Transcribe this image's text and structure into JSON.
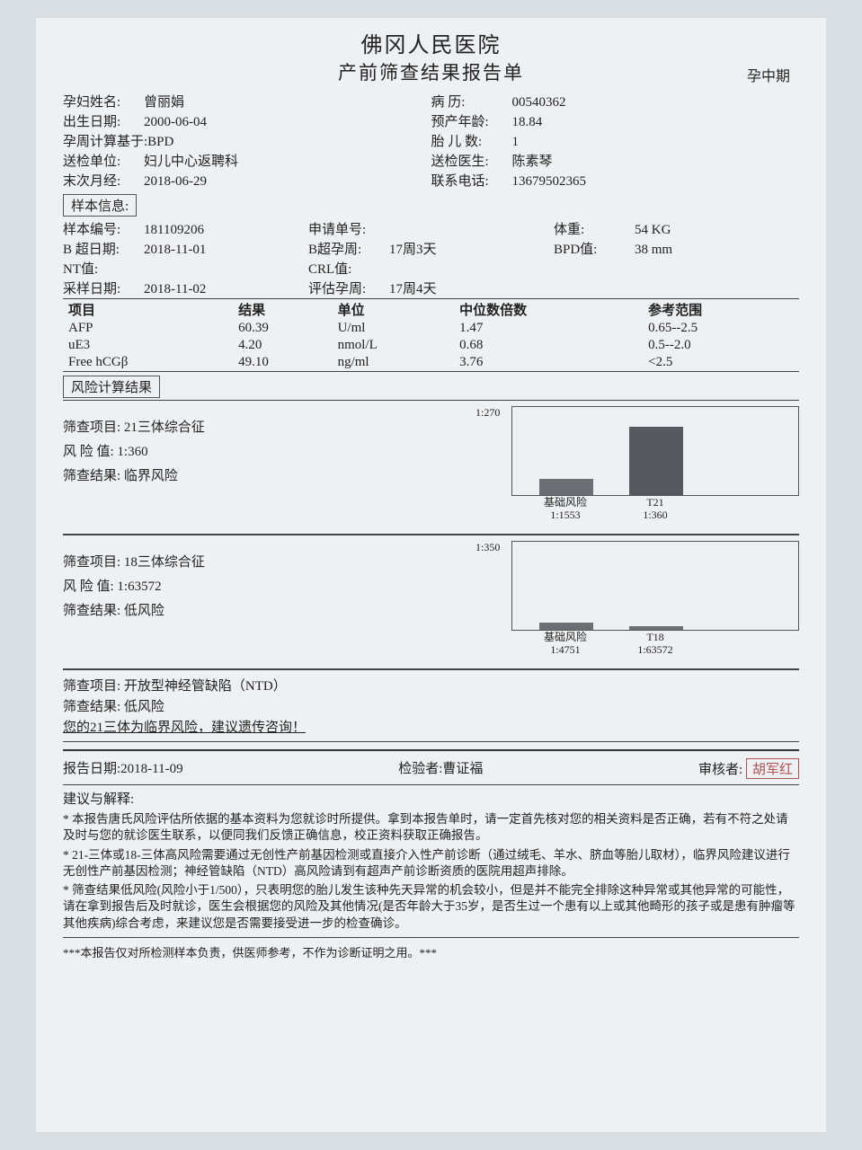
{
  "hospital": "佛冈人民医院",
  "report_title": "产前筛查结果报告单",
  "phase": "孕中期",
  "patient_left": [
    {
      "label": "孕妇姓名:",
      "value": "曾丽娟"
    },
    {
      "label": "出生日期:",
      "value": "2000-06-04"
    },
    {
      "label": "孕周计算基于:",
      "value": "BPD"
    },
    {
      "label": "送检单位:",
      "value": "妇儿中心返聘科"
    },
    {
      "label": "末次月经:",
      "value": "2018-06-29"
    }
  ],
  "patient_right": [
    {
      "label": "病  历:",
      "value": "00540362"
    },
    {
      "label": "预产年龄:",
      "value": "18.84"
    },
    {
      "label": "胎 儿 数:",
      "value": "1"
    },
    {
      "label": "送检医生:",
      "value": "陈素琴"
    },
    {
      "label": "联系电话:",
      "value": "13679502365"
    }
  ],
  "sample_section_title": "样本信息:",
  "sample_cols": [
    [
      {
        "label": "样本编号:",
        "value": "181109206"
      },
      {
        "label": "B 超日期:",
        "value": "2018-11-01"
      },
      {
        "label": "NT值:",
        "value": ""
      },
      {
        "label": "采样日期:",
        "value": "2018-11-02"
      }
    ],
    [
      {
        "label": "申请单号:",
        "value": ""
      },
      {
        "label": "B超孕周:",
        "value": "17周3天"
      },
      {
        "label": "CRL值:",
        "value": ""
      },
      {
        "label": "评估孕周:",
        "value": "17周4天"
      }
    ],
    [
      {
        "label": "体重:",
        "value": "54 KG"
      },
      {
        "label": "BPD值:",
        "value": "38 mm"
      }
    ]
  ],
  "results_headers": [
    "项目",
    "结果",
    "单位",
    "中位数倍数",
    "参考范围"
  ],
  "results_rows": [
    [
      "AFP",
      "60.39",
      "U/ml",
      "1.47",
      "0.65--2.5"
    ],
    [
      "uE3",
      "4.20",
      "nmol/L",
      "0.68",
      "0.5--2.0"
    ],
    [
      "Free hCGβ",
      "49.10",
      "ng/ml",
      "3.76",
      "<2.5"
    ]
  ],
  "risk_section_title": "风险计算结果",
  "risk_blocks": [
    {
      "item_label": "筛查项目:",
      "item": "21三体综合征",
      "value_label": "风 险 值:",
      "value": "1:360",
      "result_label": "筛查结果:",
      "result": "临界风险",
      "chart": {
        "axis_top": "1:270",
        "bars": [
          {
            "height_pct": 18,
            "top": "基础风险",
            "bottom": "1:1553",
            "color": "#6a6f75"
          },
          {
            "height_pct": 78,
            "top": "T21",
            "bottom": "1:360",
            "color": "#555a60"
          }
        ]
      }
    },
    {
      "item_label": "筛查项目:",
      "item": "18三体综合征",
      "value_label": "风 险 值:",
      "value": "1:63572",
      "result_label": "筛查结果:",
      "result": "低风险",
      "chart": {
        "axis_top": "1:350",
        "bars": [
          {
            "height_pct": 8,
            "top": "基础风险",
            "bottom": "1:4751",
            "color": "#6a6f75"
          },
          {
            "height_pct": 4,
            "top": "T18",
            "bottom": "1:63572",
            "color": "#6a6f75"
          }
        ]
      }
    }
  ],
  "ntd": {
    "item_label": "筛查项目:",
    "item": "开放型神经管缺陷（NTD）",
    "result_label": "筛查结果:",
    "result": "低风险",
    "warning": "您的21三体为临界风险，建议遗传咨询！"
  },
  "footer": {
    "date_label": "报告日期:",
    "date": "2018-11-09",
    "tester_label": "检验者:",
    "tester": "曹证福",
    "reviewer_label": "审核者:",
    "reviewer": "胡军红"
  },
  "advice": {
    "title": "建议与解释:",
    "paras": [
      "* 本报告唐氏风险评估所依据的基本资料为您就诊时所提供。拿到本报告单时，请一定首先核对您的相关资料是否正确，若有不符之处请及时与您的就诊医生联系，以便同我们反馈正确信息，校正资料获取正确报告。",
      "* 21-三体或18-三体高风险需要通过无创性产前基因检测或直接介入性产前诊断（通过绒毛、羊水、脐血等胎儿取材），临界风险建议进行无创性产前基因检测；神经管缺陷（NTD）高风险请到有超声产前诊断资质的医院用超声排除。",
      "* 筛查结果低风险(风险小于1/500），只表明您的胎儿发生该种先天异常的机会较小，但是并不能完全排除这种异常或其他异常的可能性，请在拿到报告后及时就诊，医生会根据您的风险及其他情况(是否年龄大于35岁，是否生过一个患有以上或其他畸形的孩子或是患有肿瘤等其他疾病)综合考虑，来建议您是否需要接受进一步的检查确诊。"
    ]
  },
  "disclaimer": "***本报告仅对所检测样本负责，供医师参考，不作为诊断证明之用。***"
}
